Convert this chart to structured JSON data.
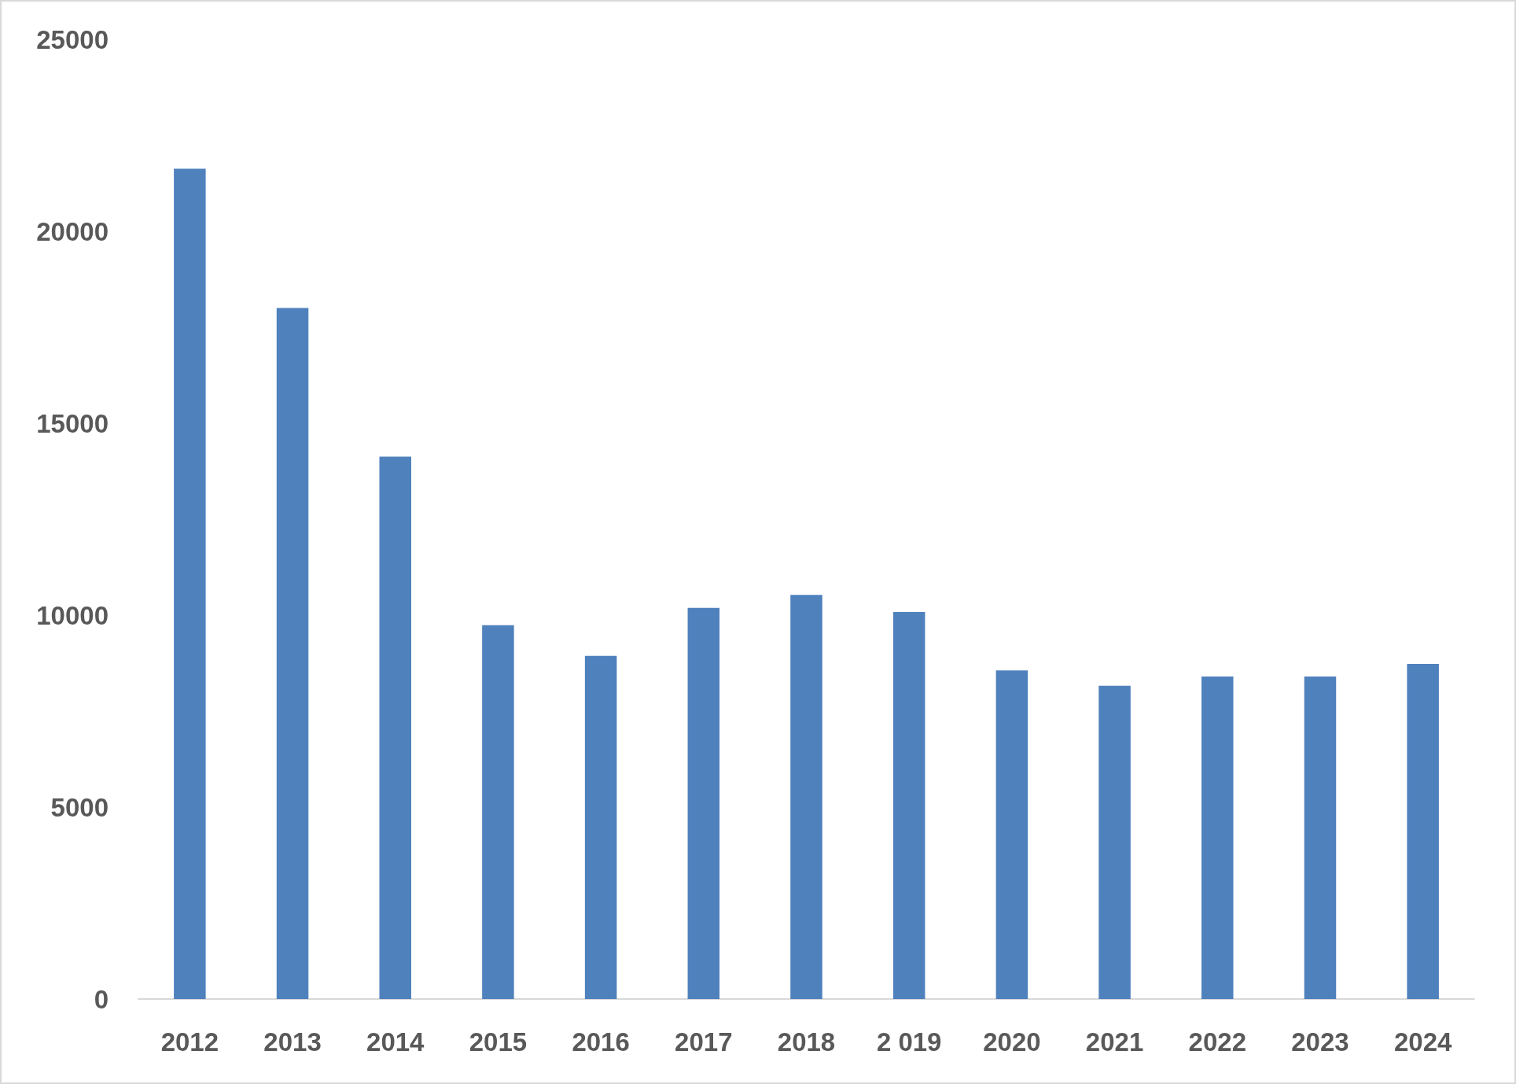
{
  "chart_data": {
    "type": "bar",
    "categories": [
      "2012",
      "2013",
      "2014",
      "2015",
      "2016",
      "2017",
      "2018",
      "2 019",
      "2020",
      "2021",
      "2022",
      "2023",
      "2024"
    ],
    "values": [
      21630,
      18000,
      14130,
      9740,
      8940,
      10190,
      10530,
      10080,
      8560,
      8160,
      8400,
      8400,
      8730
    ],
    "color": "#4f81bd",
    "ylim": [
      0,
      25000
    ],
    "yticks": [
      0,
      5000,
      10000,
      15000,
      20000,
      25000
    ],
    "grid": false
  }
}
